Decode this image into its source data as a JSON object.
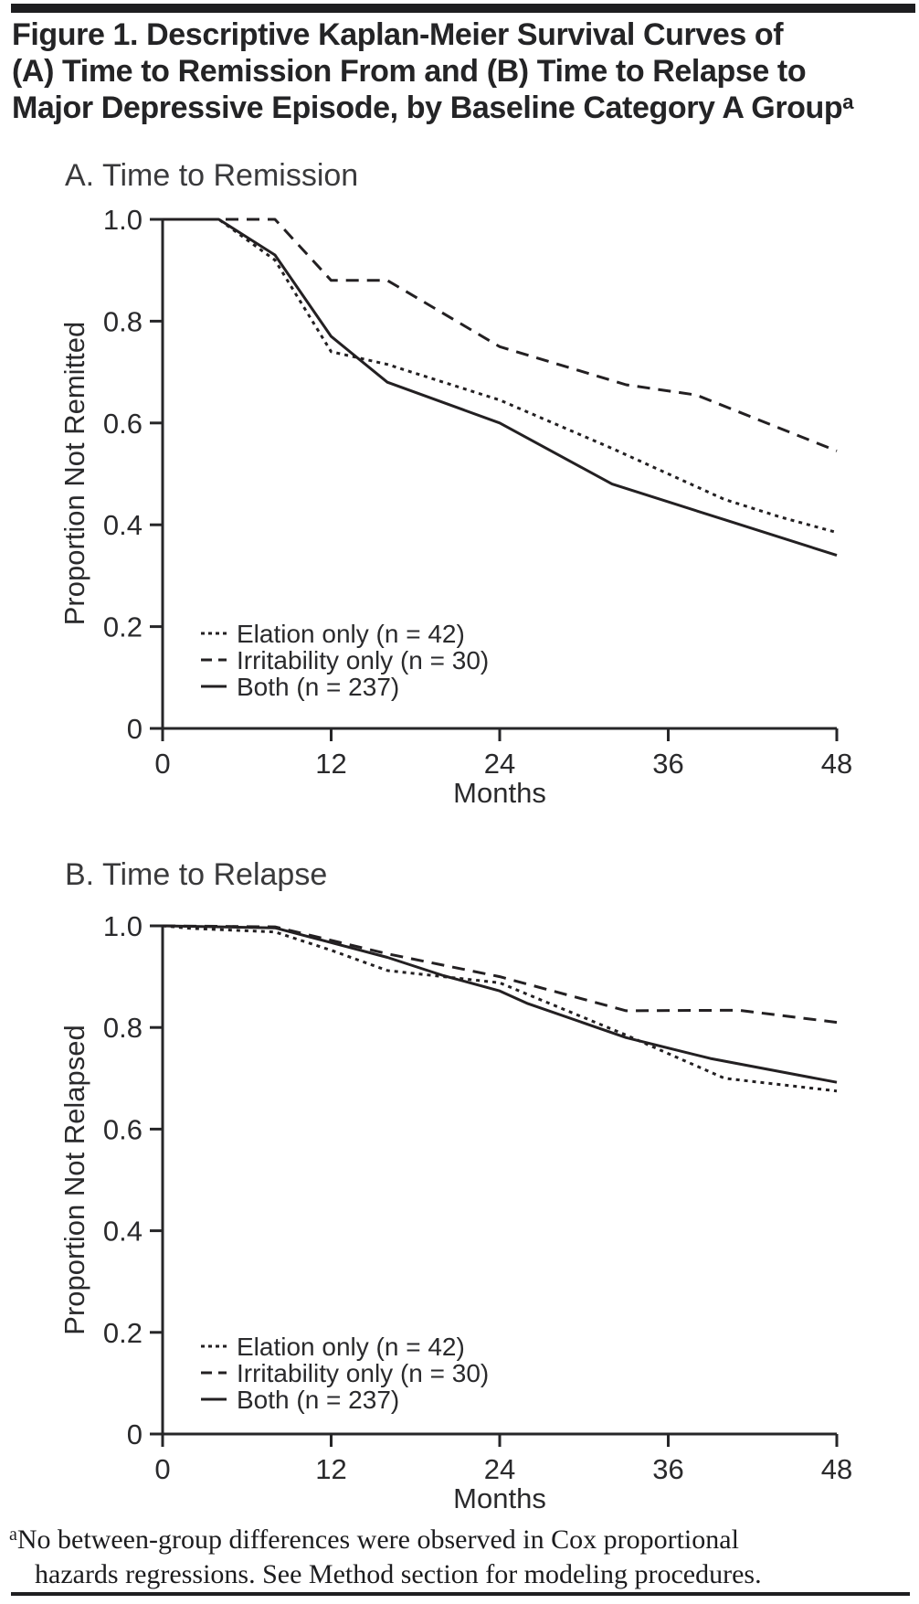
{
  "title": {
    "line1": "Figure 1. Descriptive Kaplan-Meier Survival Curves of",
    "line2": "(A) Time to Remission From and (B) Time to Relapse to",
    "line3": "Major Depressive Episode, by Baseline Category A Group",
    "footnote_marker": "a"
  },
  "footnote": {
    "marker": "a",
    "line1": "No between-group differences were observed in Cox proportional",
    "line2": "hazards regressions. See Method section for modeling procedures."
  },
  "chart_data": [
    {
      "type": "line",
      "panel": "A",
      "title": "A. Time to Remission",
      "xlabel": "Months",
      "ylabel": "Proportion Not Remitted",
      "xlim": [
        0,
        48
      ],
      "ylim": [
        0,
        1.0
      ],
      "xticks": [
        0,
        12,
        24,
        36,
        48
      ],
      "yticks": [
        "1.0",
        "0.8",
        "0.6",
        "0.4",
        "0.2",
        "0"
      ],
      "ytick_values": [
        1.0,
        0.8,
        0.6,
        0.4,
        0.2,
        0
      ],
      "grid": false,
      "legend_position": "lower-left",
      "series": [
        {
          "name": "Elation only (n = 42)",
          "n": 42,
          "style": "dotted",
          "x": [
            0,
            4,
            8,
            12,
            16,
            24,
            32,
            40,
            44,
            48
          ],
          "y": [
            1.0,
            1.0,
            0.92,
            0.74,
            0.715,
            0.645,
            0.55,
            0.45,
            0.415,
            0.385
          ]
        },
        {
          "name": "Irritability only (n = 30)",
          "n": 30,
          "style": "dashed",
          "x": [
            0,
            8,
            12,
            16,
            24,
            33,
            38,
            48
          ],
          "y": [
            1.0,
            1.0,
            0.88,
            0.88,
            0.75,
            0.675,
            0.655,
            0.545
          ]
        },
        {
          "name": "Both (n = 237)",
          "n": 237,
          "style": "solid",
          "x": [
            0,
            4,
            8,
            12,
            16,
            24,
            32,
            40,
            48
          ],
          "y": [
            1.0,
            1.0,
            0.93,
            0.77,
            0.68,
            0.6,
            0.48,
            0.41,
            0.34
          ]
        }
      ]
    },
    {
      "type": "line",
      "panel": "B",
      "title": "B. Time to Relapse",
      "xlabel": "Months",
      "ylabel": "Proportion Not Relapsed",
      "xlim": [
        0,
        48
      ],
      "ylim": [
        0,
        1.0
      ],
      "xticks": [
        0,
        12,
        24,
        36,
        48
      ],
      "yticks": [
        "1.0",
        "0.8",
        "0.6",
        "0.4",
        "0.2",
        "0"
      ],
      "ytick_values": [
        1.0,
        0.8,
        0.6,
        0.4,
        0.2,
        0
      ],
      "grid": false,
      "legend_position": "lower-left",
      "series": [
        {
          "name": "Elation only (n = 42)",
          "n": 42,
          "style": "dotted",
          "x": [
            0,
            2,
            8,
            12,
            16,
            20,
            24,
            26,
            33,
            40,
            48
          ],
          "y": [
            1.0,
            0.995,
            0.988,
            0.952,
            0.912,
            0.9,
            0.888,
            0.865,
            0.785,
            0.7,
            0.675
          ]
        },
        {
          "name": "Irritability only (n = 30)",
          "n": 30,
          "style": "dashed",
          "x": [
            0,
            8,
            16,
            24,
            33,
            41,
            48
          ],
          "y": [
            1.0,
            0.998,
            0.945,
            0.9,
            0.833,
            0.834,
            0.81
          ]
        },
        {
          "name": "Both (n = 237)",
          "n": 237,
          "style": "solid",
          "x": [
            0,
            8,
            16,
            20,
            24,
            26,
            33,
            39,
            48
          ],
          "y": [
            1.0,
            0.996,
            0.938,
            0.902,
            0.872,
            0.847,
            0.78,
            0.739,
            0.692
          ]
        }
      ]
    }
  ]
}
